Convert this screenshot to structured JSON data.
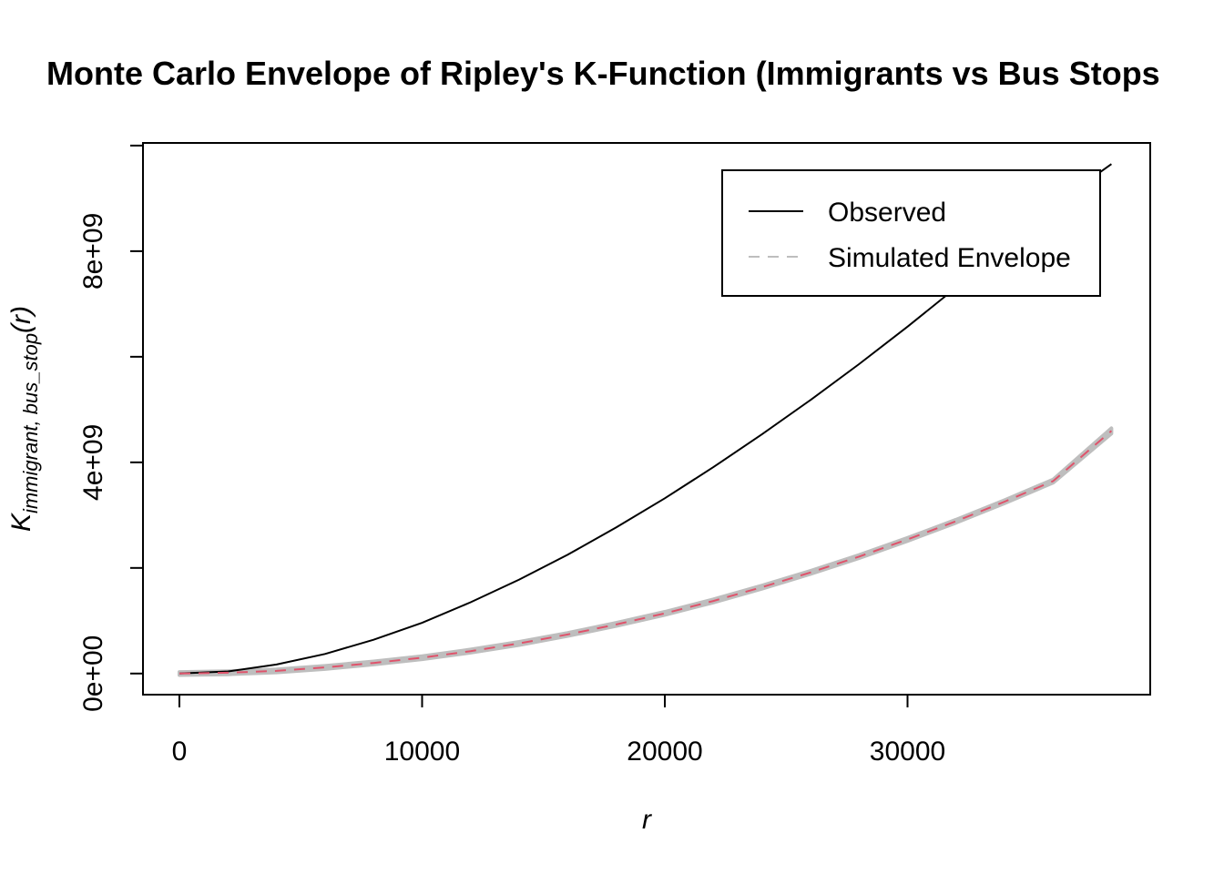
{
  "chart_data": {
    "type": "line",
    "title": "Monte Carlo Envelope of Ripley's K-Function (Immigrants vs Bus Stops",
    "xlabel": "r",
    "ylabel": {
      "main": "K",
      "subscript": "immigrant, bus_stop",
      "arg": "(r)"
    },
    "xlim": [
      -1500,
      40000
    ],
    "ylim": [
      -400000000,
      10050000000
    ],
    "x_ticks": [
      0,
      10000,
      20000,
      30000
    ],
    "x_tick_labels": [
      "0",
      "10000",
      "20000",
      "30000"
    ],
    "y_ticks": [
      0,
      2000000000,
      4000000000,
      6000000000,
      8000000000,
      10000000000
    ],
    "y_tick_labels": [
      "0e+00",
      "",
      "4e+09",
      "",
      "8e+09",
      ""
    ],
    "grid": false,
    "legend": {
      "position": "top-right",
      "entries": [
        {
          "label": "Observed",
          "color": "#000000",
          "style": "solid"
        },
        {
          "label": "Simulated Envelope",
          "color": "#bebebe",
          "style": "dashed"
        }
      ]
    },
    "series": [
      {
        "name": "Observed",
        "color": "#000000",
        "style": "solid",
        "x": [
          0,
          2000,
          4000,
          6000,
          8000,
          10000,
          12000,
          14000,
          16000,
          18000,
          20000,
          22000,
          24000,
          26000,
          28000,
          30000,
          32000,
          34000,
          36000,
          38400
        ],
        "y": [
          0,
          40000000,
          170000000,
          370000000,
          640000000,
          960000000,
          1350000000,
          1780000000,
          2250000000,
          2770000000,
          3320000000,
          3910000000,
          4530000000,
          5180000000,
          5860000000,
          6570000000,
          7310000000,
          8070000000,
          8860000000,
          9650000000
        ]
      },
      {
        "name": "Simulated Envelope",
        "color": "#bebebe",
        "style": "band",
        "x": [
          0,
          2000,
          4000,
          6000,
          8000,
          10000,
          12000,
          14000,
          16000,
          18000,
          20000,
          22000,
          24000,
          26000,
          28000,
          30000,
          32000,
          34000,
          36000,
          38400
        ],
        "lo": [
          -30000000,
          -15000000,
          20000000,
          85000000,
          170000000,
          270000000,
          395000000,
          540000000,
          710000000,
          900000000,
          1110000000,
          1345000000,
          1605000000,
          1885000000,
          2185000000,
          2510000000,
          2855000000,
          3225000000,
          3615000000,
          4545000000
        ],
        "hi": [
          30000000,
          45000000,
          80000000,
          145000000,
          230000000,
          330000000,
          455000000,
          600000000,
          770000000,
          960000000,
          1170000000,
          1405000000,
          1665000000,
          1945000000,
          2245000000,
          2570000000,
          2915000000,
          3285000000,
          3675000000,
          4645000000
        ]
      },
      {
        "color": "#df536b",
        "style": "dashed",
        "x": [
          0,
          2000,
          4000,
          6000,
          8000,
          10000,
          12000,
          14000,
          16000,
          18000,
          20000,
          22000,
          24000,
          26000,
          28000,
          30000,
          32000,
          34000,
          36000,
          38400
        ],
        "y": [
          0,
          15000000,
          50000000,
          115000000,
          200000000,
          300000000,
          425000000,
          570000000,
          740000000,
          930000000,
          1140000000,
          1375000000,
          1635000000,
          1915000000,
          2215000000,
          2540000000,
          2885000000,
          3255000000,
          3645000000,
          4595000000
        ]
      }
    ]
  }
}
